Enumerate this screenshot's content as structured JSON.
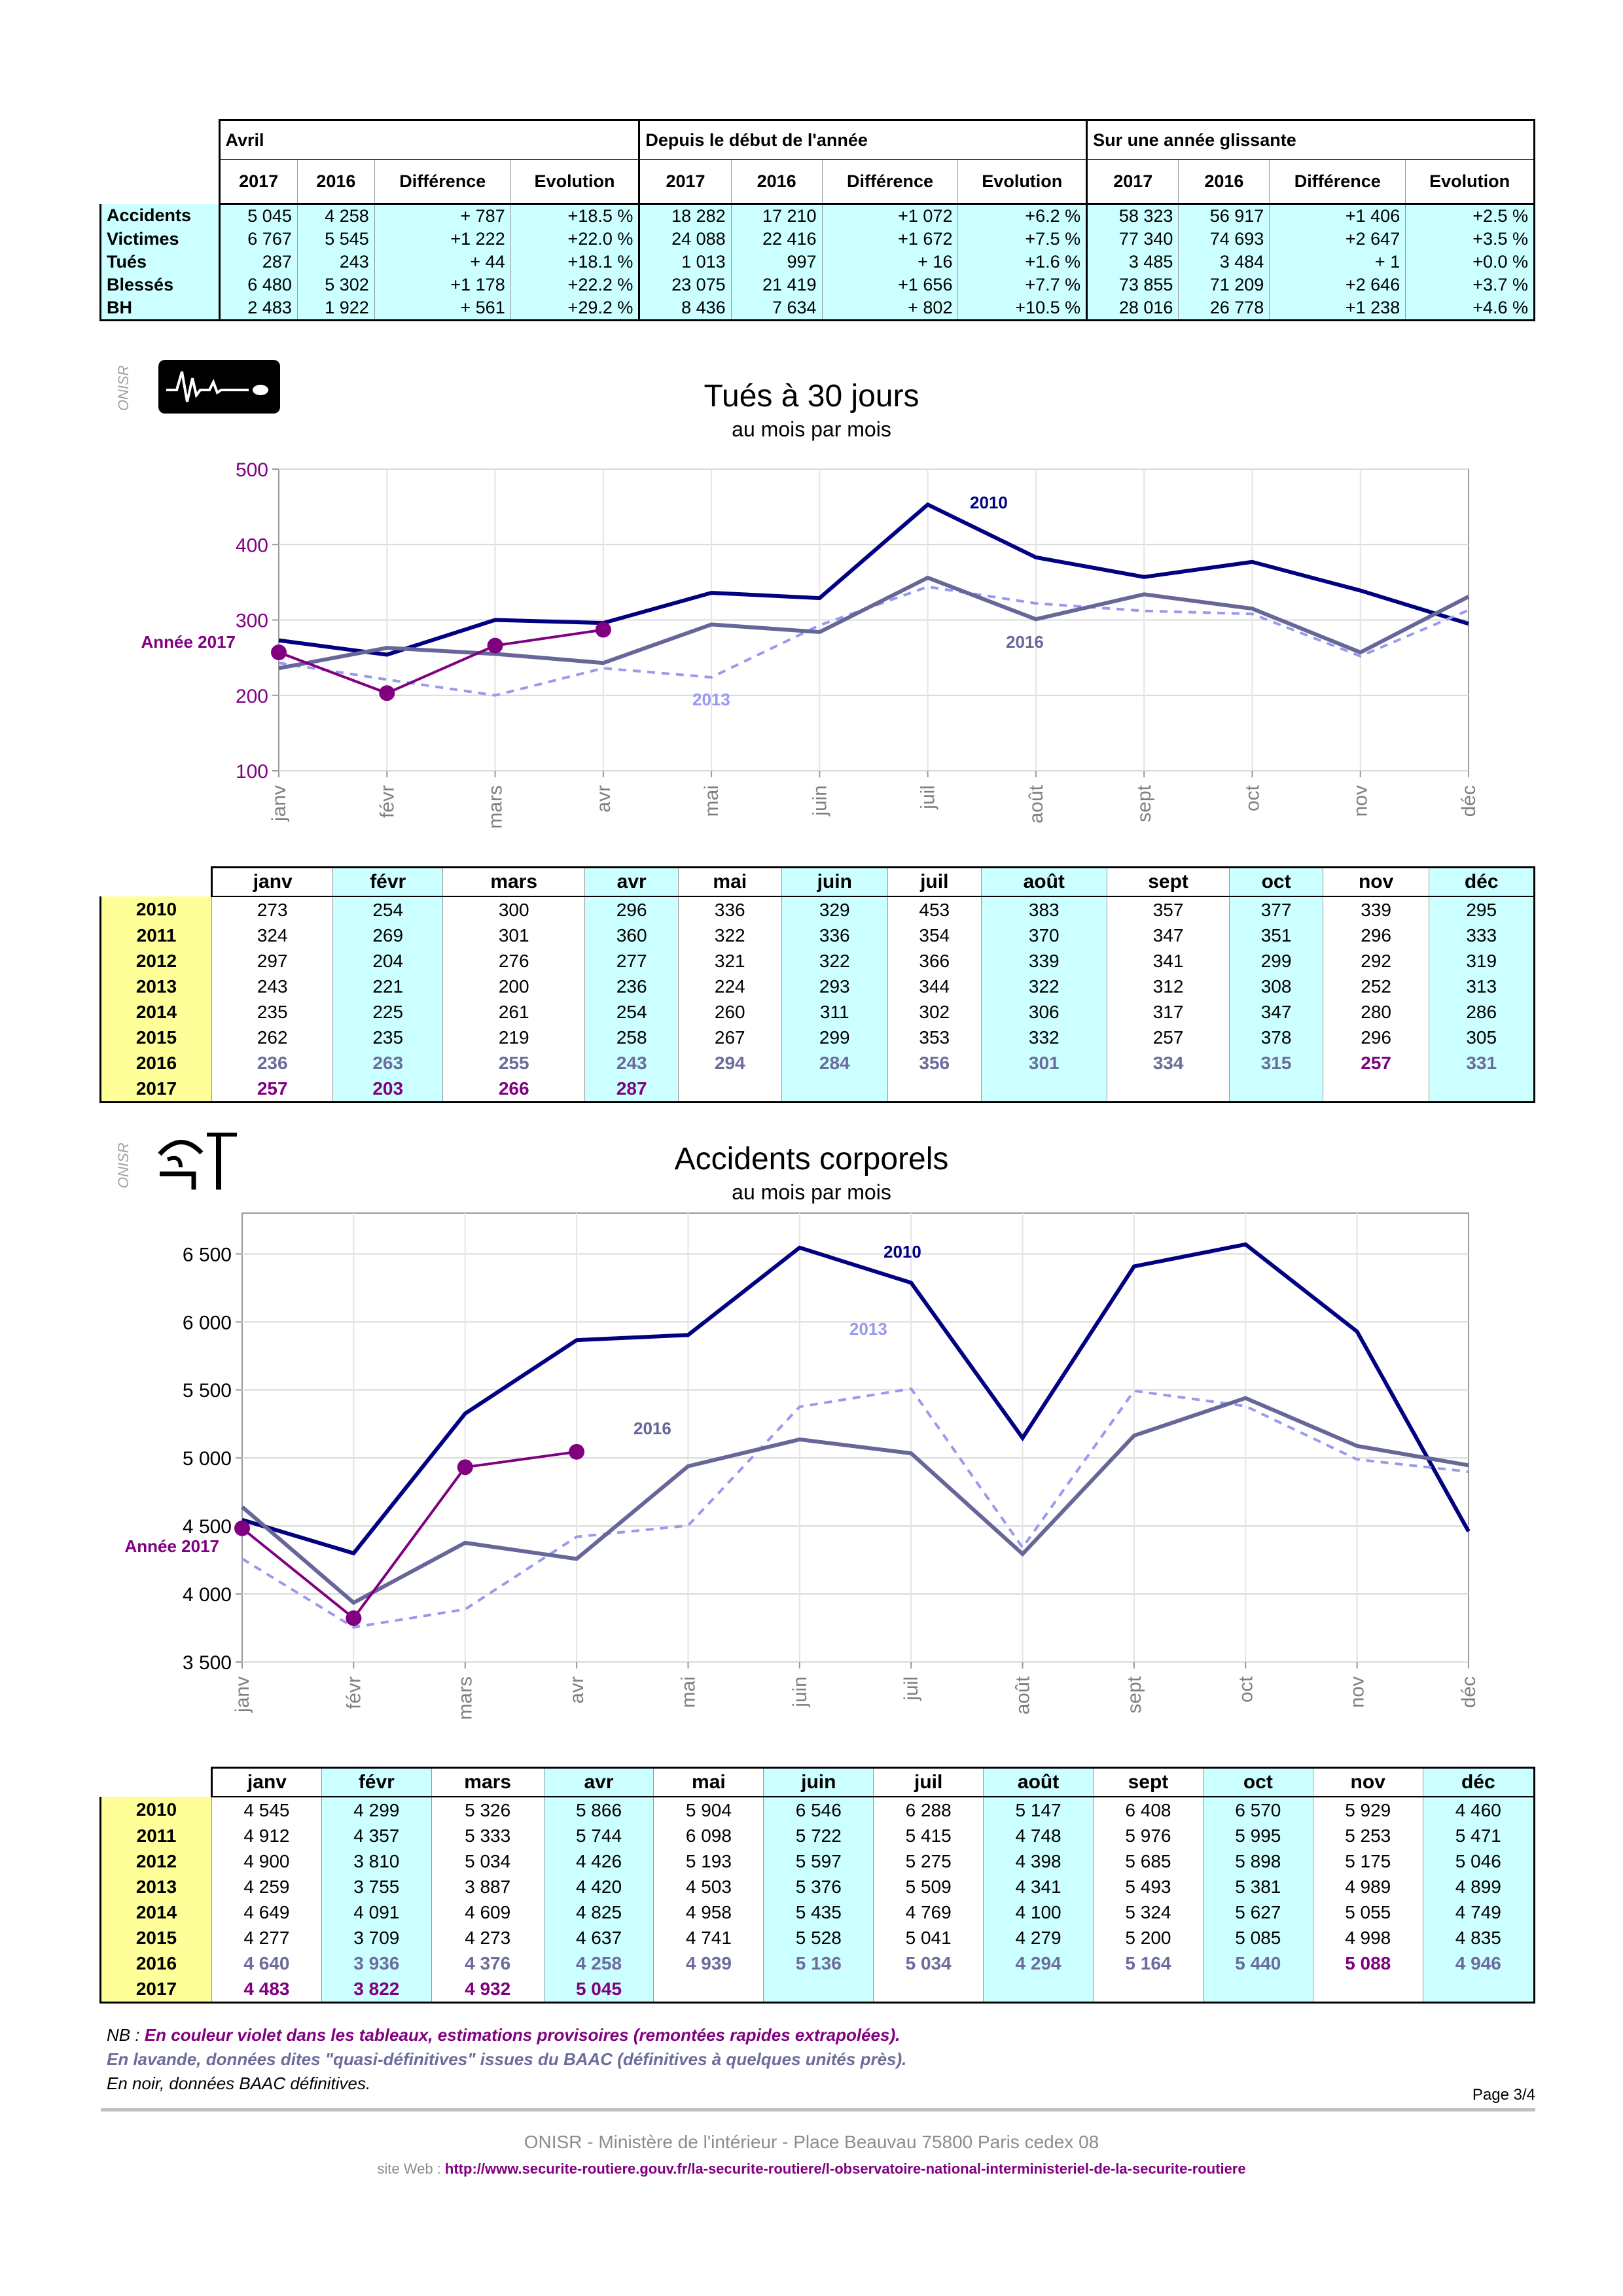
{
  "summary": {
    "groups": [
      "Avril",
      "Depuis le début de l'année",
      "Sur une année glissante"
    ],
    "cols": [
      "2017",
      "2016",
      "Différence",
      "Evolution"
    ],
    "rows": [
      {
        "label": "Accidents",
        "cells": [
          "5 045",
          "4 258",
          "+ 787",
          "+18.5 %",
          "18 282",
          "17 210",
          "+1 072",
          "+6.2 %",
          "58 323",
          "56 917",
          "+1 406",
          "+2.5 %"
        ]
      },
      {
        "label": "Victimes",
        "cells": [
          "6 767",
          "5 545",
          "+1 222",
          "+22.0 %",
          "24 088",
          "22 416",
          "+1 672",
          "+7.5 %",
          "77 340",
          "74 693",
          "+2 647",
          "+3.5 %"
        ]
      },
      {
        "label": "Tués",
        "cells": [
          "287",
          "243",
          "+ 44",
          "+18.1 %",
          "1 013",
          "997",
          "+ 16",
          "+1.6 %",
          "3 485",
          "3 484",
          "+ 1",
          "+0.0 %"
        ]
      },
      {
        "label": "Blessés",
        "cells": [
          "6 480",
          "5 302",
          "+1 178",
          "+22.2 %",
          "23 075",
          "21 419",
          "+1 656",
          "+7.7 %",
          "73 855",
          "71 209",
          "+2 646",
          "+3.7 %"
        ]
      },
      {
        "label": "BH",
        "cells": [
          "2 483",
          "1 922",
          "+ 561",
          "+29.2 %",
          "8 436",
          "7 634",
          "+ 802",
          "+10.5 %",
          "28 016",
          "26 778",
          "+1 238",
          "+4.6 %"
        ]
      }
    ]
  },
  "onisr_label": "ONISR",
  "months": [
    "janv",
    "févr",
    "mars",
    "avr",
    "mai",
    "juin",
    "juil",
    "août",
    "sept",
    "oct",
    "nov",
    "déc"
  ],
  "chart_data": [
    {
      "type": "line",
      "title": "Tués à 30 jours",
      "subtitle": "au mois par mois",
      "ylim": [
        100,
        500
      ],
      "yticks": [
        100,
        200,
        300,
        400,
        500
      ],
      "ytick_labels": [
        "100",
        "200",
        "300",
        "400",
        "500"
      ],
      "grid": true,
      "series": [
        {
          "name": "2010",
          "color": "#000080",
          "style": "solid",
          "values": [
            273,
            254,
            300,
            296,
            336,
            329,
            453,
            383,
            357,
            377,
            339,
            295
          ]
        },
        {
          "name": "2013",
          "color": "#9999ee",
          "style": "dashed",
          "values": [
            243,
            221,
            200,
            236,
            224,
            293,
            344,
            322,
            312,
            308,
            252,
            313
          ]
        },
        {
          "name": "2016",
          "color": "#666699",
          "style": "solid",
          "values": [
            236,
            263,
            255,
            243,
            294,
            284,
            356,
            301,
            334,
            315,
            257,
            331
          ]
        },
        {
          "name": "Année 2017",
          "color": "#800080",
          "style": "markers",
          "values": [
            257,
            203,
            266,
            287
          ]
        }
      ],
      "table": {
        "rows": [
          {
            "year": "2010",
            "values": [
              "273",
              "254",
              "300",
              "296",
              "336",
              "329",
              "453",
              "383",
              "357",
              "377",
              "339",
              "295"
            ]
          },
          {
            "year": "2011",
            "values": [
              "324",
              "269",
              "301",
              "360",
              "322",
              "336",
              "354",
              "370",
              "347",
              "351",
              "296",
              "333"
            ]
          },
          {
            "year": "2012",
            "values": [
              "297",
              "204",
              "276",
              "277",
              "321",
              "322",
              "366",
              "339",
              "341",
              "299",
              "292",
              "319"
            ]
          },
          {
            "year": "2013",
            "values": [
              "243",
              "221",
              "200",
              "236",
              "224",
              "293",
              "344",
              "322",
              "312",
              "308",
              "252",
              "313"
            ]
          },
          {
            "year": "2014",
            "values": [
              "235",
              "225",
              "261",
              "254",
              "260",
              "311",
              "302",
              "306",
              "317",
              "347",
              "280",
              "286"
            ]
          },
          {
            "year": "2015",
            "values": [
              "262",
              "235",
              "219",
              "258",
              "267",
              "299",
              "353",
              "332",
              "257",
              "378",
              "296",
              "305"
            ]
          },
          {
            "year": "2016",
            "values": [
              "236",
              "263",
              "255",
              "243",
              "294",
              "284",
              "356",
              "301",
              "334",
              "315",
              "257",
              "331"
            ]
          },
          {
            "year": "2017",
            "values": [
              "257",
              "203",
              "266",
              "287",
              "",
              "",
              "",
              "",
              "",
              "",
              "",
              ""
            ]
          }
        ]
      }
    },
    {
      "type": "line",
      "title": "Accidents corporels",
      "subtitle": "au mois par mois",
      "ylim": [
        3500,
        6800
      ],
      "yticks": [
        3500,
        4000,
        4500,
        5000,
        5500,
        6000,
        6500
      ],
      "ytick_labels": [
        "3 500",
        "4 000",
        "4 500",
        "5 000",
        "5 500",
        "6 000",
        "6 500"
      ],
      "grid": true,
      "series": [
        {
          "name": "2010",
          "color": "#000080",
          "style": "solid",
          "values": [
            4545,
            4299,
            5326,
            5866,
            5904,
            6546,
            6288,
            5147,
            6408,
            6570,
            5929,
            4460
          ]
        },
        {
          "name": "2013",
          "color": "#9999ee",
          "style": "dashed",
          "values": [
            4259,
            3755,
            3887,
            4420,
            4503,
            5376,
            5509,
            4341,
            5493,
            5381,
            4989,
            4899
          ]
        },
        {
          "name": "2016",
          "color": "#666699",
          "style": "solid",
          "values": [
            4640,
            3936,
            4376,
            4258,
            4939,
            5136,
            5034,
            4294,
            5164,
            5440,
            5088,
            4946
          ]
        },
        {
          "name": "Année 2017",
          "color": "#800080",
          "style": "markers",
          "values": [
            4483,
            3822,
            4932,
            5045
          ]
        }
      ],
      "table": {
        "rows": [
          {
            "year": "2010",
            "values": [
              "4 545",
              "4 299",
              "5 326",
              "5 866",
              "5 904",
              "6 546",
              "6 288",
              "5 147",
              "6 408",
              "6 570",
              "5 929",
              "4 460"
            ]
          },
          {
            "year": "2011",
            "values": [
              "4 912",
              "4 357",
              "5 333",
              "5 744",
              "6 098",
              "5 722",
              "5 415",
              "4 748",
              "5 976",
              "5 995",
              "5 253",
              "5 471"
            ]
          },
          {
            "year": "2012",
            "values": [
              "4 900",
              "3 810",
              "5 034",
              "4 426",
              "5 193",
              "5 597",
              "5 275",
              "4 398",
              "5 685",
              "5 898",
              "5 175",
              "5 046"
            ]
          },
          {
            "year": "2013",
            "values": [
              "4 259",
              "3 755",
              "3 887",
              "4 420",
              "4 503",
              "5 376",
              "5 509",
              "4 341",
              "5 493",
              "5 381",
              "4 989",
              "4 899"
            ]
          },
          {
            "year": "2014",
            "values": [
              "4 649",
              "4 091",
              "4 609",
              "4 825",
              "4 958",
              "5 435",
              "4 769",
              "4 100",
              "5 324",
              "5 627",
              "5 055",
              "4 749"
            ]
          },
          {
            "year": "2015",
            "values": [
              "4 277",
              "3 709",
              "4 273",
              "4 637",
              "4 741",
              "5 528",
              "5 041",
              "4 279",
              "5 200",
              "5 085",
              "4 998",
              "4 835"
            ]
          },
          {
            "year": "2016",
            "values": [
              "4 640",
              "3 936",
              "4 376",
              "4 258",
              "4 939",
              "5 136",
              "5 034",
              "4 294",
              "5 164",
              "5 440",
              "5 088",
              "4 946"
            ]
          },
          {
            "year": "2017",
            "values": [
              "4 483",
              "3 822",
              "4 932",
              "5 045",
              "",
              "",
              "",
              "",
              "",
              "",
              "",
              ""
            ]
          }
        ]
      }
    }
  ],
  "notes": {
    "nb_prefix": "NB :",
    "line1": "En couleur violet dans les tableaux, estimations provisoires (remontées rapides extrapolées).",
    "line2": "En lavande, données dites \"quasi-définitives\" issues du BAAC (définitives à quelques unités près).",
    "line3": "En noir, données BAAC définitives."
  },
  "page_number": "Page 3/4",
  "footer": {
    "line1": "ONISR - Ministère de l'intérieur - Place Beauvau 75800 Paris cedex 08",
    "site_prefix": "site Web :",
    "url": "http://www.securite-routiere.gouv.fr/la-securite-routiere/l-observatoire-national-interministeriel-de-la-securite-routiere"
  }
}
